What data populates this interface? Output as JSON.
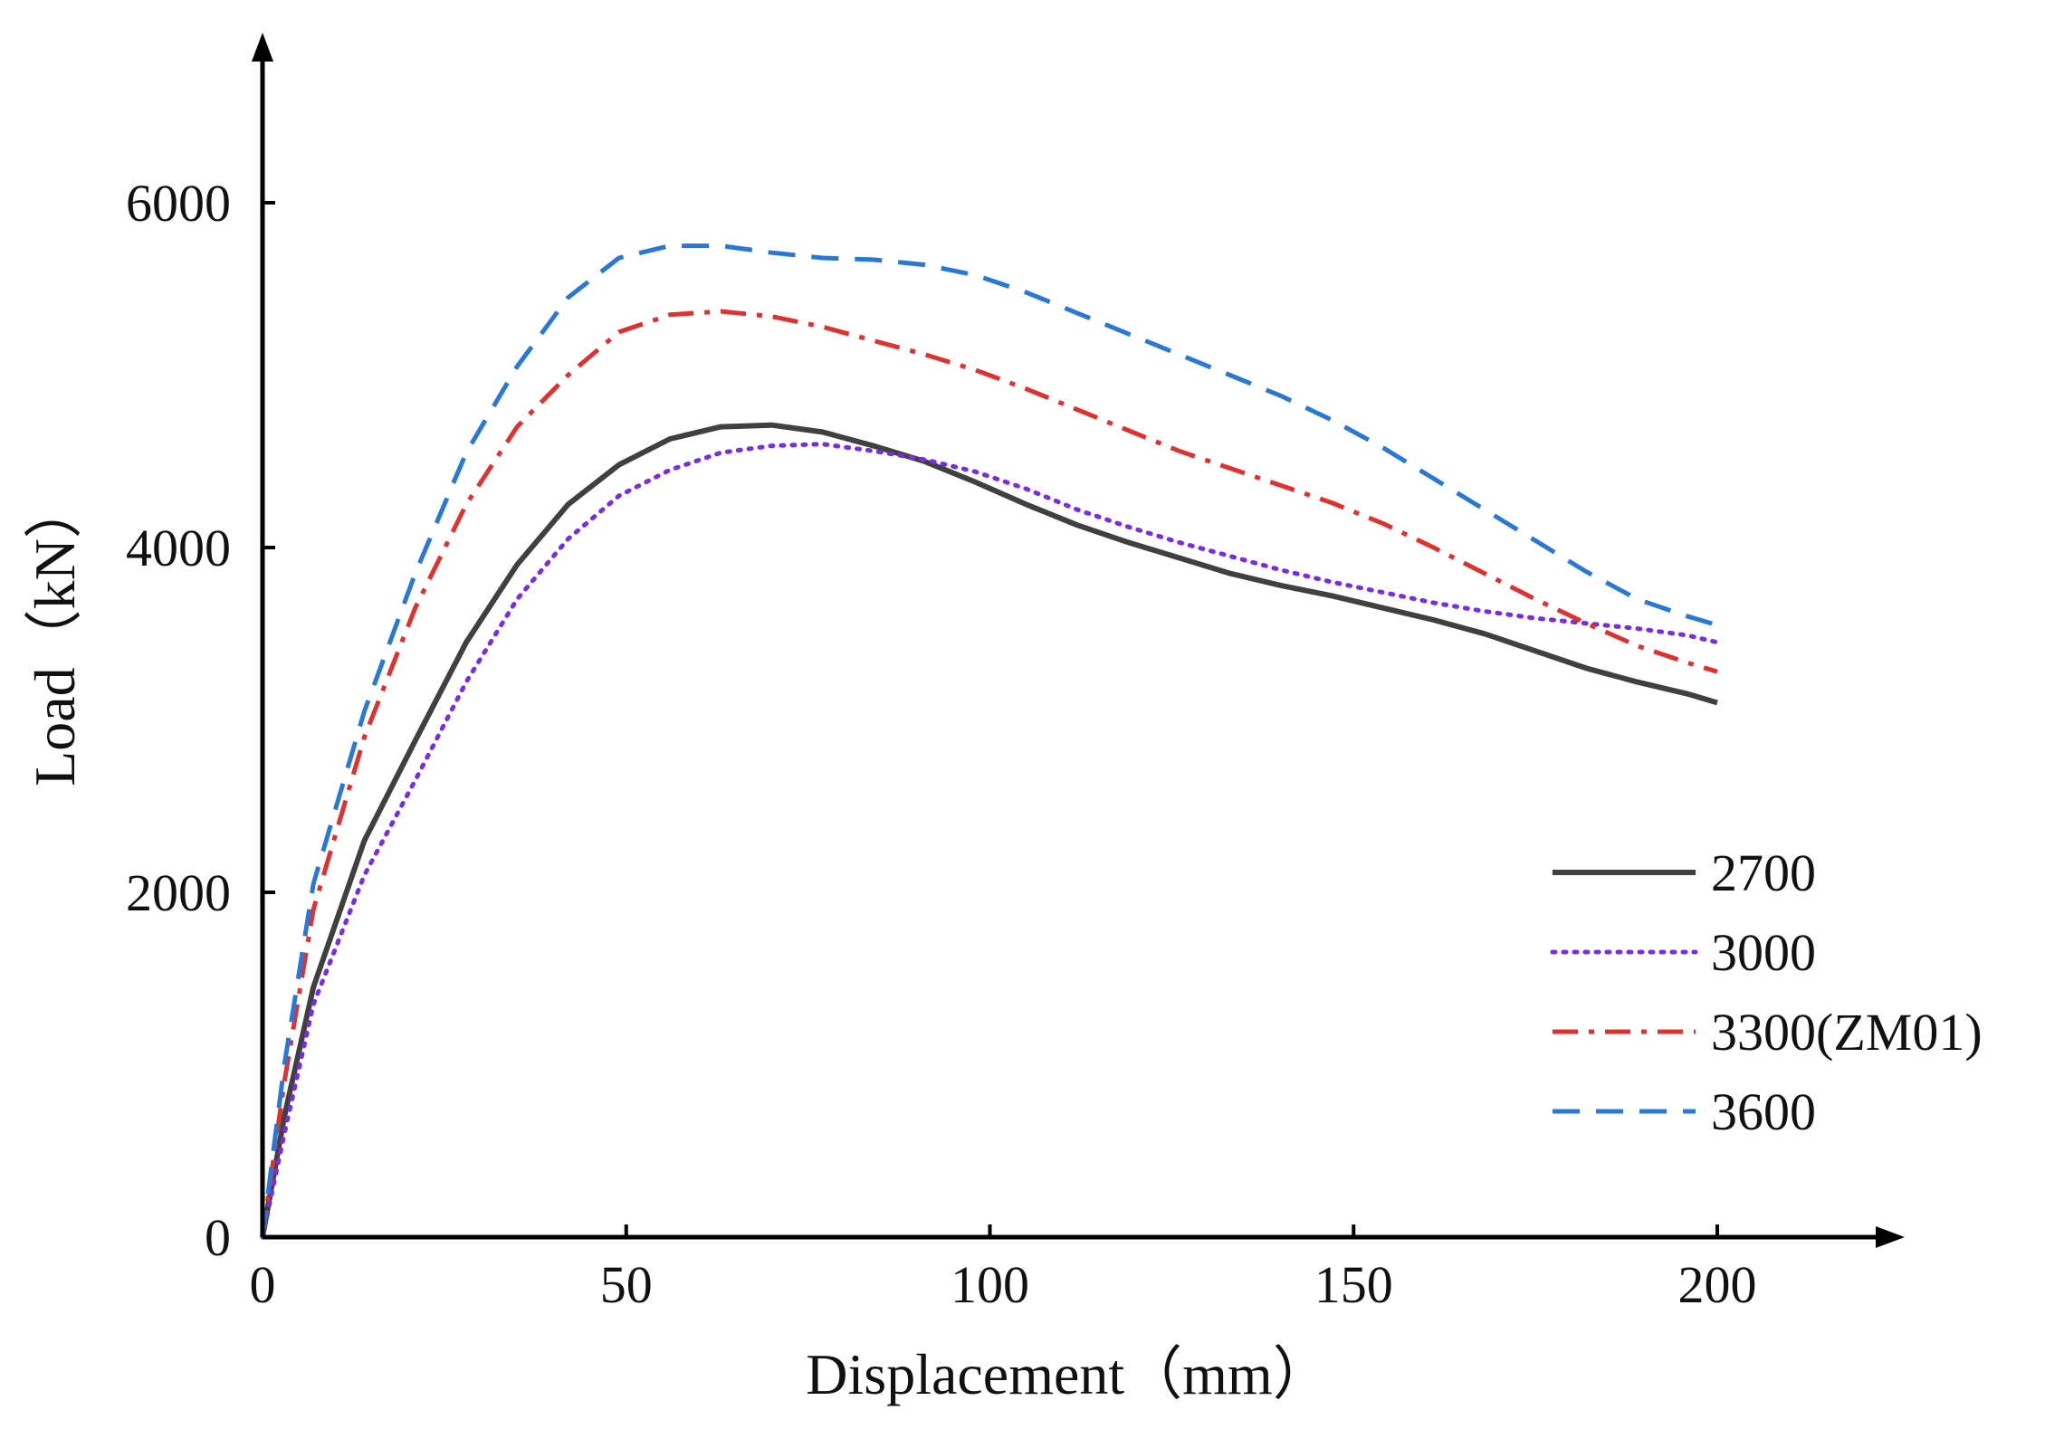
{
  "chart_data": {
    "type": "line",
    "title": "",
    "xlabel": "Displacement（mm）",
    "ylabel": "Load（kN）",
    "xlim": [
      0,
      225
    ],
    "ylim": [
      0,
      6700
    ],
    "xticks": [
      0,
      50,
      100,
      150,
      200
    ],
    "yticks": [
      0,
      2000,
      4000,
      6000
    ],
    "xtick_labels": [
      "0",
      "50",
      "100",
      "150",
      "200"
    ],
    "ytick_labels": [
      "0",
      "2000",
      "4000",
      "6000"
    ],
    "grid": false,
    "legend_position": "lower-right",
    "series": [
      {
        "name": "2700",
        "style": "solid",
        "color": "#404040",
        "x": [
          0,
          3,
          7,
          14,
          21,
          28,
          35,
          42,
          49,
          56,
          63,
          70,
          77,
          84,
          91,
          98,
          105,
          112,
          119,
          126,
          133,
          140,
          147,
          154,
          161,
          168,
          175,
          182,
          189,
          196,
          200
        ],
        "y": [
          0,
          700,
          1450,
          2300,
          2880,
          3450,
          3900,
          4250,
          4480,
          4630,
          4700,
          4710,
          4670,
          4590,
          4500,
          4380,
          4250,
          4130,
          4030,
          3940,
          3850,
          3780,
          3720,
          3650,
          3580,
          3500,
          3400,
          3300,
          3220,
          3150,
          3100
        ]
      },
      {
        "name": "3000",
        "style": "dotted",
        "color": "#7b2be2",
        "x": [
          0,
          3,
          7,
          14,
          21,
          28,
          35,
          42,
          49,
          56,
          63,
          70,
          77,
          84,
          91,
          98,
          105,
          112,
          119,
          126,
          133,
          140,
          147,
          154,
          161,
          168,
          175,
          182,
          189,
          196,
          200
        ],
        "y": [
          0,
          600,
          1350,
          2100,
          2650,
          3220,
          3700,
          4050,
          4300,
          4450,
          4550,
          4590,
          4600,
          4560,
          4510,
          4440,
          4340,
          4220,
          4120,
          4030,
          3950,
          3870,
          3800,
          3740,
          3680,
          3630,
          3590,
          3560,
          3530,
          3490,
          3450
        ]
      },
      {
        "name": "3300(ZM01)",
        "style": "dashdot",
        "color": "#e03030",
        "x": [
          0,
          3,
          7,
          14,
          21,
          28,
          35,
          42,
          49,
          56,
          63,
          70,
          77,
          84,
          91,
          98,
          105,
          112,
          119,
          126,
          133,
          140,
          147,
          154,
          161,
          168,
          175,
          182,
          189,
          196,
          200
        ],
        "y": [
          0,
          900,
          1900,
          2900,
          3650,
          4250,
          4700,
          5000,
          5250,
          5350,
          5370,
          5340,
          5280,
          5200,
          5120,
          5030,
          4920,
          4800,
          4680,
          4560,
          4460,
          4360,
          4260,
          4140,
          4000,
          3850,
          3700,
          3560,
          3430,
          3330,
          3280
        ]
      },
      {
        "name": "3600",
        "style": "dashed",
        "color": "#2a78d6",
        "x": [
          0,
          3,
          7,
          14,
          21,
          28,
          35,
          42,
          49,
          56,
          63,
          70,
          77,
          84,
          91,
          98,
          105,
          112,
          119,
          126,
          133,
          140,
          147,
          154,
          161,
          168,
          175,
          182,
          189,
          196,
          200
        ],
        "y": [
          0,
          1000,
          2050,
          3050,
          3850,
          4550,
          5050,
          5450,
          5680,
          5750,
          5750,
          5710,
          5680,
          5670,
          5640,
          5580,
          5480,
          5360,
          5240,
          5120,
          5000,
          4880,
          4740,
          4580,
          4400,
          4220,
          4040,
          3860,
          3700,
          3600,
          3550
        ]
      }
    ]
  }
}
